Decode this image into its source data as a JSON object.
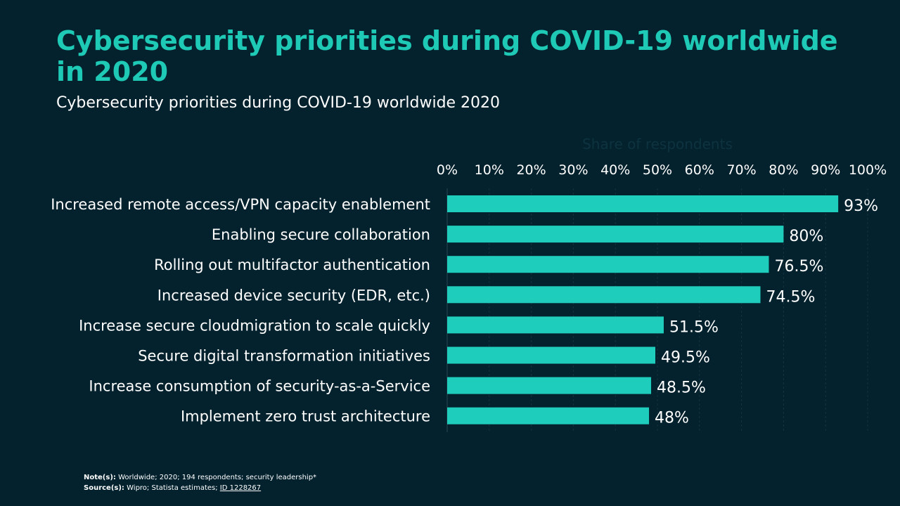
{
  "title": "Cybersecurity priorities during COVID-19 worldwide in 2020",
  "subtitle": "Cybersecurity priorities during COVID-19 worldwide 2020",
  "chart_data": {
    "type": "bar",
    "orientation": "horizontal",
    "xlabel": "Share of respondents",
    "xlim": [
      0,
      100
    ],
    "ticks": [
      "0%",
      "10%",
      "20%",
      "30%",
      "40%",
      "50%",
      "60%",
      "70%",
      "80%",
      "90%",
      "100%"
    ],
    "grid": true,
    "categories": [
      "Increased remote access/VPN capacity enablement",
      "Enabling secure collaboration",
      "Rolling out multifactor authentication",
      "Increased device security (EDR, etc.)",
      "Increase secure cloudmigration to scale quickly",
      "Secure digital transformation initiatives",
      "Increase consumption of security-as-a-Service",
      "Implement zero trust architecture"
    ],
    "values": [
      93,
      80,
      76.5,
      74.5,
      51.5,
      49.5,
      48.5,
      48
    ],
    "data_labels": [
      "93%",
      "80%",
      "76.5%",
      "74.5%",
      "51.5%",
      "49.5%",
      "48.5%",
      "48%"
    ],
    "bar_color": "#1fcdbc"
  },
  "notes": {
    "note_label": "Note(s):",
    "note_text": "Worldwide; 2020; 194 respondents; security leadership*",
    "source_label": "Source(s):",
    "source_text": "Wipro; Statista estimates;",
    "source_id": "ID 1228267"
  }
}
